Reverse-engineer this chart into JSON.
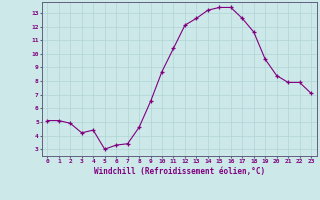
{
  "x": [
    0,
    1,
    2,
    3,
    4,
    5,
    6,
    7,
    8,
    9,
    10,
    11,
    12,
    13,
    14,
    15,
    16,
    17,
    18,
    19,
    20,
    21,
    22,
    23
  ],
  "y": [
    5.1,
    5.1,
    4.9,
    4.2,
    4.4,
    3.0,
    3.3,
    3.4,
    4.6,
    6.5,
    8.7,
    10.4,
    12.1,
    12.6,
    13.2,
    13.4,
    13.4,
    12.6,
    11.6,
    9.6,
    8.4,
    7.9,
    7.9,
    7.1
  ],
  "xlabel": "Windchill (Refroidissement éolien,°C)",
  "xlim": [
    -0.5,
    23.5
  ],
  "ylim": [
    2.5,
    13.8
  ],
  "yticks": [
    3,
    4,
    5,
    6,
    7,
    8,
    9,
    10,
    11,
    12,
    13
  ],
  "xticks": [
    0,
    1,
    2,
    3,
    4,
    5,
    6,
    7,
    8,
    9,
    10,
    11,
    12,
    13,
    14,
    15,
    16,
    17,
    18,
    19,
    20,
    21,
    22,
    23
  ],
  "line_color": "#800080",
  "marker": "+",
  "bg_color": "#cde8e8",
  "grid_color": "#b0d4d4",
  "axis_label_color": "#800080",
  "tick_color": "#800080",
  "spine_color": "#606080"
}
